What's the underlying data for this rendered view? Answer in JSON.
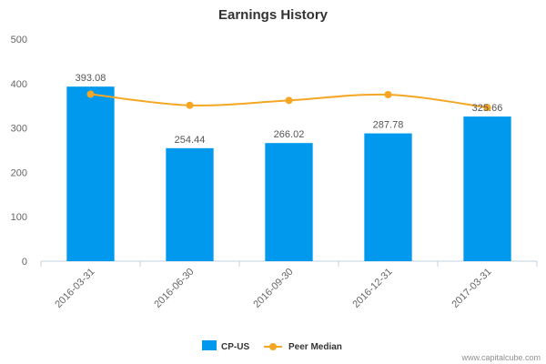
{
  "chart_data": {
    "type": "bar",
    "title": "Earnings History",
    "xlabel": "",
    "ylabel": "",
    "ylim": [
      0,
      500
    ],
    "yticks": [
      0,
      100,
      200,
      300,
      400,
      500
    ],
    "categories": [
      "2016-03-31",
      "2016-06-30",
      "2016-09-30",
      "2016-12-31",
      "2017-03-31"
    ],
    "series": [
      {
        "name": "CP-US",
        "type": "bar",
        "color": "#0099ee",
        "values": [
          393.08,
          254.44,
          266.02,
          287.78,
          325.66
        ],
        "labels": [
          "393.08",
          "254.44",
          "266.02",
          "287.78",
          "325.66"
        ]
      },
      {
        "name": "Peer Median",
        "type": "line",
        "color": "#f5a623",
        "values": [
          376,
          351,
          362,
          375,
          346
        ]
      }
    ],
    "grid": false,
    "legend": "bottom-center"
  },
  "credit": "www.capitalcube.com"
}
